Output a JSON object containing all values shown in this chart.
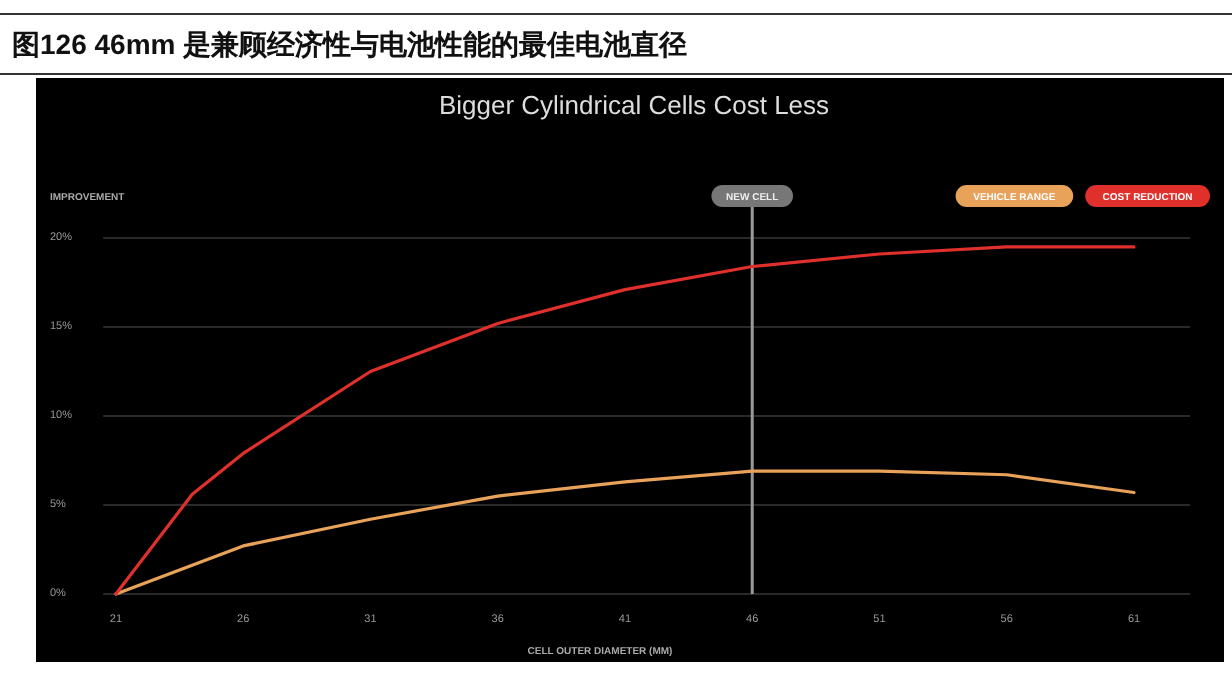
{
  "chart_data": {
    "type": "line",
    "title": "图126 46mm 是兼顾经济性与电池性能的最佳电池直径",
    "subtitle": "Bigger Cylindrical Cells Cost Less",
    "ylabel": "IMPROVEMENT",
    "xlabel": "CELL OUTER DIAMETER (MM)",
    "series": [
      {
        "name": "VEHICLE RANGE",
        "color": "#e8a25a",
        "x": [
          21,
          26,
          31,
          36,
          41,
          46,
          51,
          56,
          61
        ],
        "values": [
          0,
          2.7,
          4.2,
          5.5,
          6.3,
          6.9,
          6.9,
          6.7,
          5.7
        ]
      },
      {
        "name": "COST REDUCTION",
        "color": "#e0302c",
        "x": [
          21,
          24,
          26,
          31,
          36,
          41,
          46,
          51,
          56,
          61
        ],
        "values": [
          0,
          5.6,
          7.9,
          12.5,
          15.2,
          17.1,
          18.4,
          19.1,
          19.5,
          19.5
        ]
      }
    ],
    "xlim": [
      20.5,
      63.2
    ],
    "xticks": [
      21,
      26,
      31,
      36,
      41,
      46,
      51,
      56,
      61
    ],
    "ylim": [
      0,
      20
    ],
    "yticks": [
      {
        "value": 0,
        "label": "0%"
      },
      {
        "value": 5,
        "label": "5%"
      },
      {
        "value": 10,
        "label": "10%"
      },
      {
        "value": 15,
        "label": "15%"
      },
      {
        "value": 20,
        "label": "20%"
      }
    ],
    "ref_lines": [
      {
        "axis": "x",
        "value": 46,
        "label": "NEW CELL",
        "color": "#9a9a9a"
      }
    ],
    "grid": "y",
    "legend": "top right",
    "marker": "none",
    "line_style": "solid"
  }
}
